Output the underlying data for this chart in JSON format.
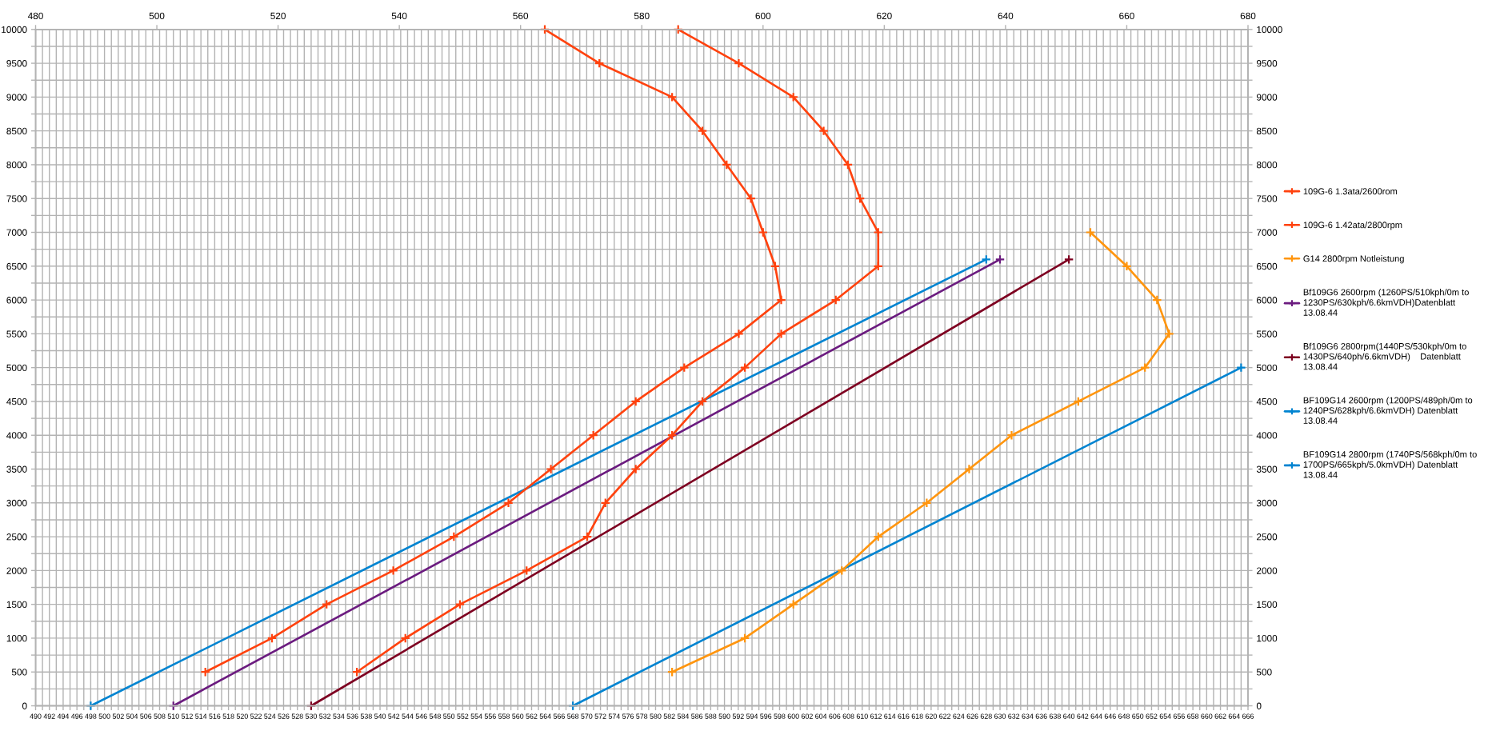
{
  "chart_data": {
    "type": "line",
    "xlim": [
      490,
      666
    ],
    "xticks": [
      490,
      {
        "value": 491,
        "label": null
      },
      492,
      {
        "value": 493,
        "label": null
      },
      494,
      {
        "value": 495,
        "label": null
      },
      496,
      {
        "value": 497,
        "label": null
      },
      498,
      {
        "value": 499,
        "label": null
      },
      500,
      {
        "value": 501,
        "label": null
      },
      502,
      {
        "value": 503,
        "label": null
      },
      504,
      {
        "value": 505,
        "label": null
      },
      506,
      {
        "value": 507,
        "label": null
      },
      508,
      {
        "value": 509,
        "label": null
      },
      510,
      {
        "value": 511,
        "label": null
      },
      512,
      {
        "value": 513,
        "label": null
      },
      514,
      {
        "value": 515,
        "label": null
      },
      516,
      {
        "value": 517,
        "label": null
      },
      518,
      {
        "value": 519,
        "label": null
      },
      520,
      {
        "value": 521,
        "label": null
      },
      522,
      {
        "value": 523,
        "label": null
      },
      524,
      {
        "value": 525,
        "label": null
      },
      526,
      {
        "value": 527,
        "label": null
      },
      528,
      {
        "value": 529,
        "label": null
      },
      530,
      {
        "value": 531,
        "label": null
      },
      532,
      {
        "value": 533,
        "label": null
      },
      534,
      {
        "value": 535,
        "label": null
      },
      536,
      {
        "value": 537,
        "label": null
      },
      538,
      {
        "value": 539,
        "label": null
      },
      540,
      {
        "value": 541,
        "label": null
      },
      542,
      {
        "value": 543,
        "label": null
      },
      544,
      {
        "value": 545,
        "label": null
      },
      546,
      {
        "value": 547,
        "label": null
      },
      548,
      {
        "value": 549,
        "label": null
      },
      550,
      {
        "value": 551,
        "label": null
      },
      552,
      {
        "value": 553,
        "label": null
      },
      554,
      {
        "value": 555,
        "label": null
      },
      556,
      {
        "value": 557,
        "label": null
      },
      558,
      {
        "value": 559,
        "label": null
      },
      560,
      {
        "value": 561,
        "label": null
      },
      562,
      {
        "value": 563,
        "label": null
      },
      564,
      {
        "value": 565,
        "label": null
      },
      566,
      {
        "value": 567,
        "label": null
      },
      568,
      {
        "value": 569,
        "label": null
      },
      570,
      {
        "value": 571,
        "label": null
      },
      572,
      {
        "value": 573,
        "label": null
      },
      574,
      {
        "value": 575,
        "label": null
      },
      576,
      {
        "value": 577,
        "label": null
      },
      578,
      {
        "value": 579,
        "label": null
      },
      580,
      {
        "value": 581,
        "label": null
      },
      582,
      {
        "value": 583,
        "label": null
      },
      584,
      {
        "value": 585,
        "label": null
      },
      586,
      {
        "value": 587,
        "label": null
      },
      588,
      {
        "value": 589,
        "label": null
      },
      590,
      {
        "value": 591,
        "label": null
      },
      592,
      {
        "value": 593,
        "label": null
      },
      594,
      {
        "value": 595,
        "label": null
      },
      596,
      {
        "value": 597,
        "label": null
      },
      598,
      {
        "value": 599,
        "label": null
      },
      600,
      {
        "value": 601,
        "label": null
      },
      602,
      {
        "value": 603,
        "label": null
      },
      604,
      {
        "value": 605,
        "label": null
      },
      606,
      {
        "value": 607,
        "label": null
      },
      608,
      {
        "value": 609,
        "label": null
      },
      610,
      {
        "value": 611,
        "label": null
      },
      612,
      {
        "value": 613,
        "label": null
      },
      614,
      {
        "value": 615,
        "label": null
      },
      616,
      {
        "value": 617,
        "label": null
      },
      618,
      {
        "value": 619,
        "label": null
      },
      620,
      {
        "value": 621,
        "label": null
      },
      622,
      {
        "value": 623,
        "label": null
      },
      624,
      {
        "value": 625,
        "label": null
      },
      626,
      {
        "value": 627,
        "label": null
      },
      628,
      {
        "value": 629,
        "label": null
      },
      630,
      {
        "value": 631,
        "label": null
      },
      632,
      {
        "value": 633,
        "label": null
      },
      634,
      {
        "value": 635,
        "label": null
      },
      636,
      {
        "value": 637,
        "label": null
      },
      638,
      {
        "value": 639,
        "label": null
      },
      640,
      {
        "value": 641,
        "label": null
      },
      642,
      {
        "value": 643,
        "label": null
      },
      644,
      {
        "value": 645,
        "label": null
      },
      646,
      {
        "value": 647,
        "label": null
      },
      648,
      {
        "value": 649,
        "label": null
      },
      650,
      {
        "value": 651,
        "label": null
      },
      652,
      {
        "value": 653,
        "label": null
      },
      654,
      {
        "value": 655,
        "label": null
      },
      656,
      {
        "value": 657,
        "label": null
      },
      658,
      {
        "value": 659,
        "label": null
      },
      660,
      {
        "value": 661,
        "label": null
      },
      662,
      {
        "value": 663,
        "label": null
      },
      664,
      {
        "value": 665,
        "label": null
      },
      666
    ],
    "x2lim": [
      480,
      680
    ],
    "x2ticks": [
      480,
      500,
      520,
      540,
      560,
      580,
      600,
      620,
      640,
      660,
      680
    ],
    "ylim": [
      0,
      10000
    ],
    "yticks": [
      0,
      {
        "value": 250,
        "label": null
      },
      500,
      {
        "value": 750,
        "label": null
      },
      1000,
      {
        "value": 1250,
        "label": null
      },
      1500,
      {
        "value": 1750,
        "label": null
      },
      2000,
      {
        "value": 2250,
        "label": null
      },
      2500,
      {
        "value": 2750,
        "label": null
      },
      3000,
      {
        "value": 3250,
        "label": null
      },
      3500,
      {
        "value": 3750,
        "label": null
      },
      4000,
      {
        "value": 4250,
        "label": null
      },
      4500,
      {
        "value": 4750,
        "label": null
      },
      5000,
      {
        "value": 5250,
        "label": null
      },
      5500,
      {
        "value": 5750,
        "label": null
      },
      6000,
      {
        "value": 6250,
        "label": null
      },
      6500,
      {
        "value": 6750,
        "label": null
      },
      7000,
      {
        "value": 7250,
        "label": null
      },
      7500,
      {
        "value": 7750,
        "label": null
      },
      8000,
      {
        "value": 8250,
        "label": null
      },
      8500,
      {
        "value": 8750,
        "label": null
      },
      9000,
      {
        "value": 9250,
        "label": null
      },
      9500,
      {
        "value": 9750,
        "label": null
      },
      10000
    ],
    "y2lim": [
      0,
      10000
    ],
    "y2ticks": [
      0,
      {
        "value": 250,
        "label": null
      },
      500,
      {
        "value": 750,
        "label": null
      },
      1000,
      {
        "value": 1250,
        "label": null
      },
      1500,
      {
        "value": 1750,
        "label": null
      },
      2000,
      {
        "value": 2250,
        "label": null
      },
      2500,
      {
        "value": 2750,
        "label": null
      },
      3000,
      {
        "value": 3250,
        "label": null
      },
      3500,
      {
        "value": 3750,
        "label": null
      },
      4000,
      {
        "value": 4250,
        "label": null
      },
      4500,
      {
        "value": 4750,
        "label": null
      },
      5000,
      {
        "value": 5250,
        "label": null
      },
      5500,
      {
        "value": 5750,
        "label": null
      },
      6000,
      {
        "value": 6250,
        "label": null
      },
      6500,
      {
        "value": 6750,
        "label": null
      },
      7000,
      {
        "value": 7250,
        "label": null
      },
      7500,
      {
        "value": 7750,
        "label": null
      },
      8000,
      {
        "value": 8250,
        "label": null
      },
      8500,
      {
        "value": 8750,
        "label": null
      },
      9000,
      {
        "value": 9250,
        "label": null
      },
      9500,
      {
        "value": 9750,
        "label": null
      },
      10000
    ],
    "grid": true,
    "legend": "right",
    "marker": "cross",
    "series": [
      {
        "name": "109G-6 1.3ata/2600rom",
        "color": "#ff420e",
        "axis": "x2",
        "x": [
          508,
          519,
          528,
          539,
          549,
          558,
          565,
          572,
          579,
          587,
          596,
          603,
          602,
          600,
          598,
          594,
          590,
          585,
          573,
          564
        ],
        "values": [
          500,
          1000,
          1500,
          2000,
          2500,
          3000,
          3500,
          4000,
          4500,
          5000,
          5500,
          6000,
          6500,
          7000,
          7500,
          8000,
          8500,
          9000,
          9500,
          10000
        ]
      },
      {
        "name": "109G-6 1.42ata/2800rpm",
        "color": "#ff420e",
        "axis": "x2",
        "x": [
          533,
          541,
          550,
          561,
          571,
          574,
          579,
          585,
          590,
          597,
          603,
          612,
          619,
          619,
          616,
          614,
          610,
          605,
          596,
          586
        ],
        "values": [
          500,
          1000,
          1500,
          2000,
          2500,
          3000,
          3500,
          4000,
          4500,
          5000,
          5500,
          6000,
          6500,
          7000,
          7500,
          8000,
          8500,
          9000,
          9500,
          10000
        ]
      },
      {
        "name": "G14 2800rpm Notleistung",
        "color": "#ff950e",
        "axis": "x2",
        "x": [
          585,
          597,
          605,
          613,
          619,
          627,
          634,
          641,
          652,
          663,
          667,
          665,
          660,
          654
        ],
        "values": [
          500,
          1000,
          1500,
          2000,
          2500,
          3000,
          3500,
          4000,
          4500,
          5000,
          5500,
          6000,
          6500,
          7000
        ]
      },
      {
        "name": "Bf109G6 2600rpm (1260PS/510kph/0m to\n1230PS/630kph/6.6kmVDH)Datenblatt\n13.08.44",
        "color": "#6b1b7f",
        "x": [
          510,
          630
        ],
        "values": [
          0,
          6600
        ]
      },
      {
        "name": "Bf109G6 2800rpm(1440PS/530kph/0m to\n1430PS/640ph/6.6kmVDH)    Datenblatt\n13.08.44",
        "color": "#7e0021",
        "x": [
          530,
          640
        ],
        "values": [
          0,
          6600
        ]
      },
      {
        "name": "BF109G14 2600rpm (1200PS/489ph/0m to\n1240PS/628kph/6.6kmVDH) Datenblatt\n13.08.44",
        "color": "#0084d1",
        "x": [
          498,
          628
        ],
        "values": [
          0,
          6600
        ]
      },
      {
        "name": "BF109G14 2800rpm (1740PS/568kph/0m to\n1700PS/665kph/5.0kmVDH) Datenblatt\n13.08.44",
        "color": "#0084d1",
        "x": [
          568,
          665
        ],
        "values": [
          0,
          5000
        ]
      }
    ]
  }
}
